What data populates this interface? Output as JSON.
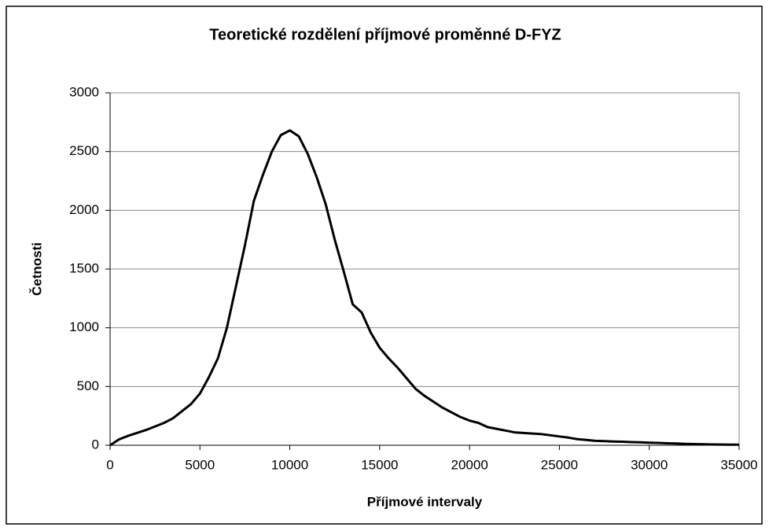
{
  "chart_data": {
    "type": "line",
    "title": "Teoretické rozdělení příjmové proměnné D-FYZ",
    "xlabel": "Příjmové intervaly",
    "ylabel": "Četnosti",
    "x": [
      0,
      500,
      1000,
      1500,
      2000,
      2500,
      3000,
      3500,
      4000,
      4500,
      5000,
      5500,
      6000,
      6500,
      7000,
      7500,
      8000,
      8500,
      9000,
      9500,
      10000,
      10500,
      11000,
      11500,
      12000,
      12500,
      13000,
      13500,
      14000,
      14500,
      15000,
      15500,
      16000,
      16500,
      17000,
      17500,
      18000,
      18500,
      19000,
      19500,
      20000,
      20500,
      21000,
      21500,
      22000,
      22500,
      23000,
      23500,
      24000,
      24500,
      25000,
      25500,
      26000,
      26500,
      27000,
      27500,
      28000,
      28500,
      29000,
      29500,
      30000,
      30500,
      31000,
      31500,
      32000,
      32500,
      33000,
      33500,
      34000,
      34500,
      35000
    ],
    "series": [
      {
        "name": "Četnosti",
        "color": "#000000",
        "values": [
          0,
          50,
          80,
          105,
          130,
          160,
          190,
          230,
          290,
          350,
          440,
          580,
          740,
          1000,
          1350,
          1700,
          2080,
          2300,
          2500,
          2640,
          2680,
          2630,
          2480,
          2280,
          2050,
          1750,
          1480,
          1200,
          1130,
          960,
          830,
          740,
          660,
          570,
          480,
          420,
          370,
          320,
          280,
          240,
          210,
          190,
          155,
          140,
          125,
          110,
          105,
          100,
          95,
          85,
          75,
          65,
          52,
          45,
          38,
          35,
          32,
          30,
          27,
          25,
          22,
          20,
          17,
          15,
          12,
          10,
          8,
          7,
          6,
          5,
          5
        ]
      }
    ],
    "xlim": [
      0,
      35000
    ],
    "xticks": [
      0,
      5000,
      10000,
      15000,
      20000,
      25000,
      30000,
      35000
    ],
    "ylim": [
      0,
      3000
    ],
    "yticks": [
      0,
      500,
      1000,
      1500,
      2000,
      2500,
      3000
    ],
    "grid": true
  }
}
